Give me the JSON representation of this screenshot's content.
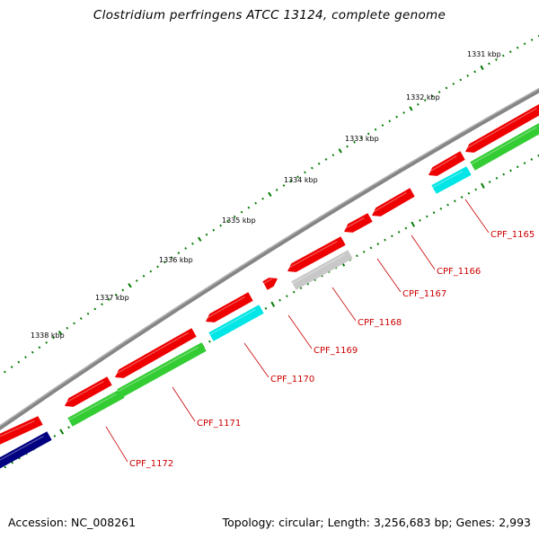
{
  "title": "Clostridium perfringens ATCC 13124, complete genome",
  "footer": {
    "accession": "Accession: NC_008261",
    "stats": "Topology: circular; Length: 3,256,683 bp; Genes: 2,993"
  },
  "colors": {
    "backbone": "#888888",
    "tick": "#007a00",
    "label": "#cc0000",
    "red_gene": "#ee0000",
    "green_gene": "#33cc33",
    "cyan_gene": "#00e5e5",
    "gray_gene": "#c8c8c8",
    "navy_gene": "#000080"
  },
  "scale": {
    "unit": "kbp",
    "labels": [
      "1331 kbp",
      "1332 kbp",
      "1333 kbp",
      "1334 kbp",
      "1335 kbp",
      "1336 kbp",
      "1337 kbp",
      "1338 kbp"
    ]
  },
  "genes": [
    {
      "id": "CPF_1165",
      "label": "CPF_1165"
    },
    {
      "id": "CPF_1166",
      "label": "CPF_1166"
    },
    {
      "id": "CPF_1167",
      "label": "CPF_1167"
    },
    {
      "id": "CPF_1168",
      "label": "CPF_1168"
    },
    {
      "id": "CPF_1169",
      "label": "CPF_1169"
    },
    {
      "id": "CPF_1170",
      "label": "CPF_1170"
    },
    {
      "id": "CPF_1171",
      "label": "CPF_1171"
    },
    {
      "id": "CPF_1172",
      "label": "CPF_1172"
    }
  ]
}
